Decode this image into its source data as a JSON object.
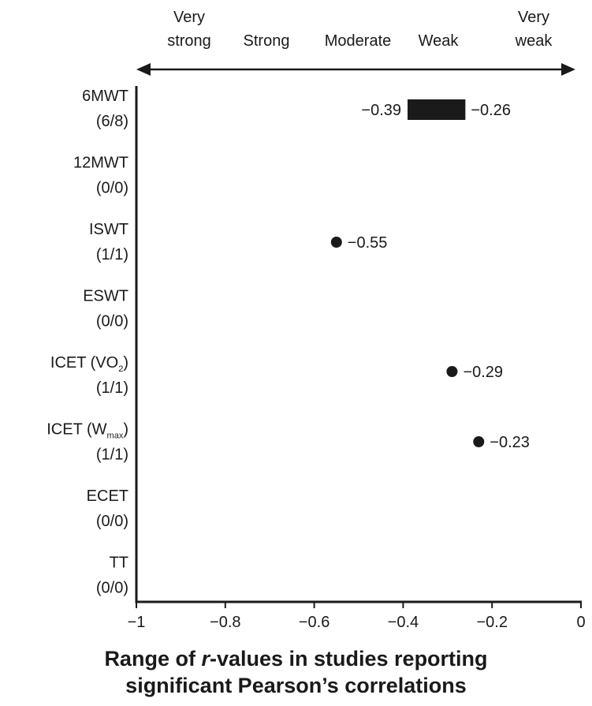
{
  "chart_data": {
    "type": "range-dot",
    "strength_categories": [
      "Very strong",
      "Strong",
      "Moderate",
      "Weak",
      "Very weak"
    ],
    "xlim": [
      -1,
      0
    ],
    "xticks": [
      -1,
      -0.8,
      -0.6,
      -0.4,
      -0.2,
      0
    ],
    "xtick_labels": [
      "−1",
      "−0.8",
      "−0.6",
      "−0.4",
      "−0.2",
      "0"
    ],
    "xlabel_line1_prefix": "Range of ",
    "xlabel_line1_italic": "r",
    "xlabel_line1_suffix": "-values in studies reporting",
    "xlabel_line2": "significant Pearson’s correlations",
    "rows": [
      {
        "test": "6MWT",
        "sub": "",
        "after": "",
        "count": "(6/8)",
        "min": -0.39,
        "max": -0.26,
        "min_label": "−0.39",
        "max_label": "−0.26"
      },
      {
        "test": "12MWT",
        "sub": "",
        "after": "",
        "count": "(0/0)"
      },
      {
        "test": "ISWT",
        "sub": "",
        "after": "",
        "count": "(1/1)",
        "value": -0.55,
        "value_label": "−0.55"
      },
      {
        "test": "ESWT",
        "sub": "",
        "after": "",
        "count": "(0/0)"
      },
      {
        "test": "ICET (VO",
        "sub": "2",
        "after": ")",
        "count": "(1/1)",
        "value": -0.29,
        "value_label": "−0.29"
      },
      {
        "test": "ICET (W",
        "sub": "max",
        "after": ")",
        "count": "(1/1)",
        "value": -0.23,
        "value_label": "−0.23"
      },
      {
        "test": "ECET",
        "sub": "",
        "after": "",
        "count": "(0/0)"
      },
      {
        "test": "TT",
        "sub": "",
        "after": "",
        "count": "(0/0)"
      }
    ]
  }
}
